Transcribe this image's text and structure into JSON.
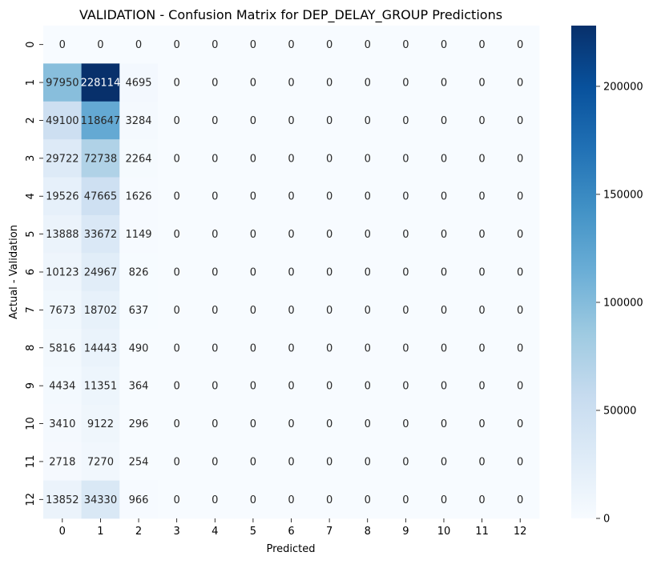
{
  "chart_data": {
    "type": "heatmap",
    "title": "VALIDATION - Confusion Matrix for DEP_DELAY_GROUP Predictions",
    "xlabel": "Predicted",
    "ylabel": "Actual - Validation",
    "x_categories": [
      "0",
      "1",
      "2",
      "3",
      "4",
      "5",
      "6",
      "7",
      "8",
      "9",
      "10",
      "11",
      "12"
    ],
    "y_categories": [
      "0",
      "1",
      "2",
      "3",
      "4",
      "5",
      "6",
      "7",
      "8",
      "9",
      "10",
      "11",
      "12"
    ],
    "values": [
      [
        0,
        0,
        0,
        0,
        0,
        0,
        0,
        0,
        0,
        0,
        0,
        0,
        0
      ],
      [
        97950,
        228114,
        4695,
        0,
        0,
        0,
        0,
        0,
        0,
        0,
        0,
        0,
        0
      ],
      [
        49100,
        118647,
        3284,
        0,
        0,
        0,
        0,
        0,
        0,
        0,
        0,
        0,
        0
      ],
      [
        29722,
        72738,
        2264,
        0,
        0,
        0,
        0,
        0,
        0,
        0,
        0,
        0,
        0
      ],
      [
        19526,
        47665,
        1626,
        0,
        0,
        0,
        0,
        0,
        0,
        0,
        0,
        0,
        0
      ],
      [
        13888,
        33672,
        1149,
        0,
        0,
        0,
        0,
        0,
        0,
        0,
        0,
        0,
        0
      ],
      [
        10123,
        24967,
        826,
        0,
        0,
        0,
        0,
        0,
        0,
        0,
        0,
        0,
        0
      ],
      [
        7673,
        18702,
        637,
        0,
        0,
        0,
        0,
        0,
        0,
        0,
        0,
        0,
        0
      ],
      [
        5816,
        14443,
        490,
        0,
        0,
        0,
        0,
        0,
        0,
        0,
        0,
        0,
        0
      ],
      [
        4434,
        11351,
        364,
        0,
        0,
        0,
        0,
        0,
        0,
        0,
        0,
        0,
        0
      ],
      [
        3410,
        9122,
        296,
        0,
        0,
        0,
        0,
        0,
        0,
        0,
        0,
        0,
        0
      ],
      [
        2718,
        7270,
        254,
        0,
        0,
        0,
        0,
        0,
        0,
        0,
        0,
        0,
        0
      ],
      [
        13852,
        34330,
        966,
        0,
        0,
        0,
        0,
        0,
        0,
        0,
        0,
        0,
        0
      ]
    ],
    "colormap": "Blues",
    "colorbar": {
      "vmin": 0,
      "vmax": 228114,
      "ticks": [
        0,
        50000,
        100000,
        150000,
        200000
      ]
    },
    "annotations": true,
    "grid": false
  }
}
